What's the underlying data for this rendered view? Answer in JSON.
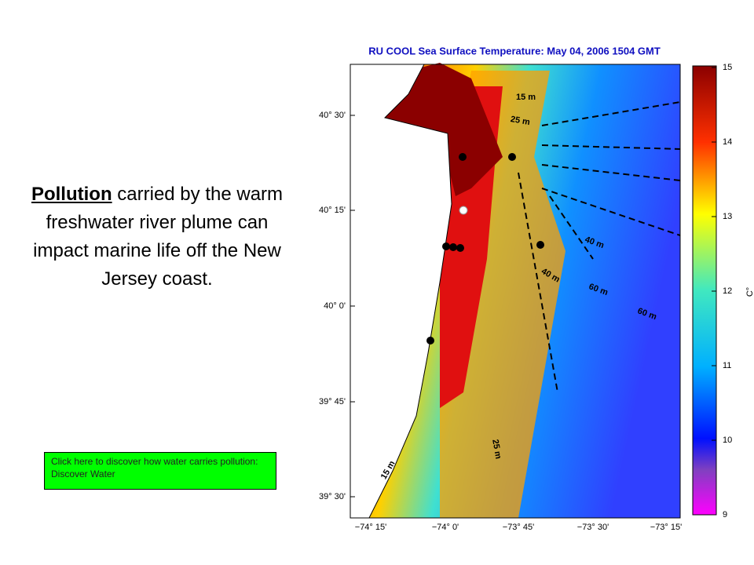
{
  "slide": {
    "keyword": "Pollution",
    "body": "carried by the warm freshwater river plume can impact marine life off the New Jersey coast.",
    "link": "Click here to discover how water carries pollution: Discover Water"
  },
  "map": {
    "title": "RU COOL  Sea Surface Temperature:  May 04, 2006 1504 GMT",
    "lat_labels": [
      "40° 30'",
      "40° 15'",
      "40° 0'",
      "39° 45'",
      "39° 30'"
    ],
    "lon_labels": [
      "−74° 15'",
      "−74° 0'",
      "−73° 45'",
      "−73° 30'",
      "−73° 15'"
    ],
    "contour_labels": [
      "15 m",
      "25 m",
      "40 m",
      "40 m",
      "60 m",
      "60 m",
      "25 m",
      "15 m"
    ],
    "colorbar": {
      "unit": "C°",
      "ticks": [
        15,
        14,
        13,
        12,
        11,
        10,
        9
      ],
      "range": [
        9,
        15
      ]
    }
  }
}
